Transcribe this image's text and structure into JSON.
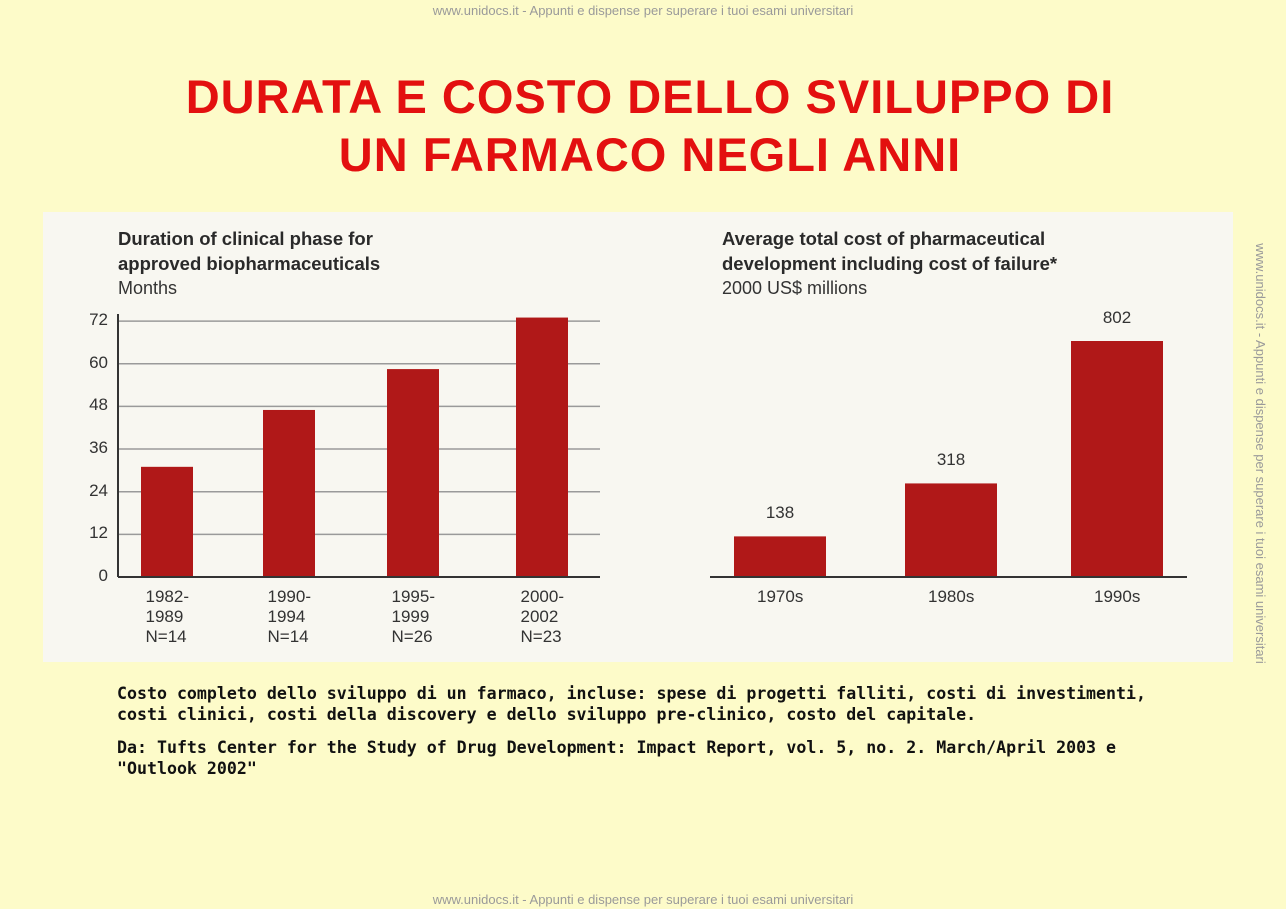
{
  "title": "DURATA E COSTO DELLO SVILUPPO DI\nUN FARMACO NEGLI ANNI",
  "watermark": "www.unidocs.it - Appunti e dispense per superare i tuoi esami universitari",
  "chart_data": [
    {
      "type": "bar",
      "title": "Duration of clinical phase for\napproved biopharmaceuticals",
      "subtitle": "Months",
      "categories": [
        "1982-\n1989\nN=14",
        "1990-\n1994\nN=14",
        "1995-\n1999\nN=26",
        "2000-\n2002\nN=23"
      ],
      "values": [
        31,
        47,
        58.5,
        73
      ],
      "color": "#b01818",
      "ylim": [
        0,
        74
      ],
      "yticks": [
        0,
        12,
        24,
        36,
        48,
        60,
        72
      ],
      "grid": true
    },
    {
      "type": "bar",
      "title": "Average total cost of pharmaceutical\ndevelopment including cost of failure*",
      "subtitle": "2000 US$ millions",
      "categories": [
        "1970s",
        "1980s",
        "1990s"
      ],
      "values": [
        138,
        318,
        802
      ],
      "color": "#b01818",
      "ylim": [
        0,
        802
      ],
      "grid": false
    }
  ],
  "caption": "Costo completo dello sviluppo di un farmaco, incluse: spese di progetti falliti, costi di investimenti,\ncosti clinici, costi della discovery e dello sviluppo pre-clinico, costo del capitale.",
  "source": "Da: Tufts Center for the Study of Drug Development: Impact Report, vol. 5, no. 2. March/April 2003 e\n\"Outlook 2002\""
}
